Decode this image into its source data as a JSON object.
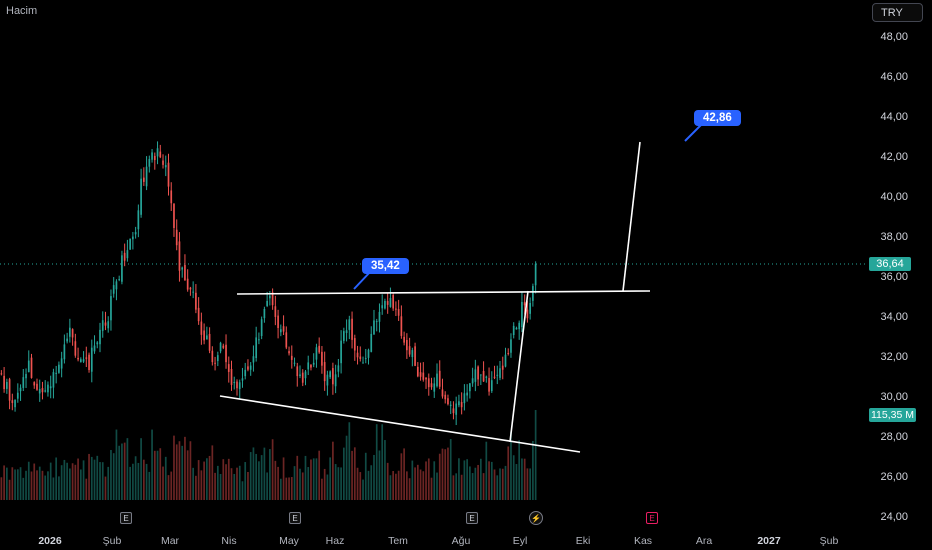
{
  "header": {
    "volume_label": "Hacim",
    "currency_button": "TRY"
  },
  "last_price_label": "36,64",
  "volume_badge": "115,35 M",
  "callouts": [
    {
      "id": "c1",
      "text": "42,86"
    },
    {
      "id": "c2",
      "text": "35,42"
    }
  ],
  "events": [
    {
      "id": "e1",
      "label": "E"
    },
    {
      "id": "e2",
      "label": "E"
    },
    {
      "id": "e3",
      "label": "E"
    },
    {
      "id": "e4",
      "label": "⚡"
    },
    {
      "id": "e5",
      "label": "E"
    }
  ],
  "colors": {
    "up": "#26a69a",
    "down": "#ef5350",
    "callout": "#2962ff",
    "background": "#000000"
  },
  "chart_data": {
    "type": "candlestick",
    "y_axis": {
      "ticks": [
        "48,00",
        "46,00",
        "44,00",
        "42,00",
        "40,00",
        "38,00",
        "36,00",
        "34,00",
        "32,00",
        "30,00",
        "28,00",
        "26,00",
        "24,00"
      ],
      "range": [
        24,
        48.5
      ]
    },
    "x_axis": {
      "ticks": [
        {
          "label": "2026",
          "bold": true
        },
        {
          "label": "Şub",
          "bold": false
        },
        {
          "label": "Mar",
          "bold": false
        },
        {
          "label": "Nis",
          "bold": false
        },
        {
          "label": "May",
          "bold": false
        },
        {
          "label": "Haz",
          "bold": false
        },
        {
          "label": "Tem",
          "bold": false
        },
        {
          "label": "Ağu",
          "bold": false
        },
        {
          "label": "Eyl",
          "bold": false
        },
        {
          "label": "Eki",
          "bold": false
        },
        {
          "label": "Kas",
          "bold": false
        },
        {
          "label": "Ara",
          "bold": false
        },
        {
          "label": "2027",
          "bold": true
        },
        {
          "label": "Şub",
          "bold": false
        }
      ]
    },
    "price_path": [
      31.0,
      30.2,
      29.5,
      30.5,
      31.8,
      30.4,
      29.8,
      30.6,
      31.5,
      32.2,
      33.4,
      32.5,
      31.4,
      31.6,
      32.8,
      33.6,
      34.2,
      35.4,
      36.8,
      37.8,
      38.3,
      41.0,
      41.5,
      42.2,
      41.8,
      40.8,
      37.6,
      36.3,
      35.6,
      34.8,
      33.4,
      32.6,
      31.8,
      32.5,
      31.2,
      30.6,
      30.9,
      31.3,
      32.6,
      33.8,
      34.8,
      34.2,
      33.2,
      32.4,
      31.8,
      30.8,
      31.5,
      32.2,
      31.5,
      30.8,
      31.2,
      32.6,
      33.8,
      32.2,
      31.5,
      32.8,
      33.8,
      34.8,
      35.0,
      34.2,
      33.0,
      32.4,
      31.6,
      31.0,
      30.3,
      30.8,
      30.5,
      29.8,
      29.2,
      29.7,
      30.8,
      31.5,
      30.8,
      30.6,
      31.0,
      31.6,
      32.3,
      33.6,
      34.4,
      33.8,
      36.64
    ],
    "volume_path": [
      0.35,
      0.42,
      0.28,
      0.33,
      0.4,
      0.31,
      0.38,
      0.29,
      0.45,
      0.36,
      0.52,
      0.41,
      0.47,
      0.39,
      0.58,
      0.44,
      0.49,
      0.62,
      0.55,
      0.7,
      0.52,
      0.66,
      0.48,
      0.72,
      0.55,
      0.43,
      0.68,
      0.51,
      0.62,
      0.46,
      0.38,
      0.54,
      0.42,
      0.35,
      0.47,
      0.33,
      0.3,
      0.41,
      0.52,
      0.44,
      0.58,
      0.49,
      0.39,
      0.45,
      0.36,
      0.48,
      0.42,
      0.55,
      0.38,
      0.44,
      0.5,
      0.63,
      0.81,
      0.47,
      0.36,
      0.48,
      0.65,
      0.78,
      0.52,
      0.44,
      0.49,
      0.37,
      0.45,
      0.42,
      0.38,
      0.35,
      0.44,
      0.58,
      0.4,
      0.36,
      0.43,
      0.39,
      0.47,
      0.35,
      0.42,
      0.5,
      0.57,
      0.72,
      0.66,
      0.52,
      0.9
    ],
    "last_price": 36.64,
    "last_volume_millions": 115.35,
    "targets": [
      42.86,
      35.42
    ]
  }
}
